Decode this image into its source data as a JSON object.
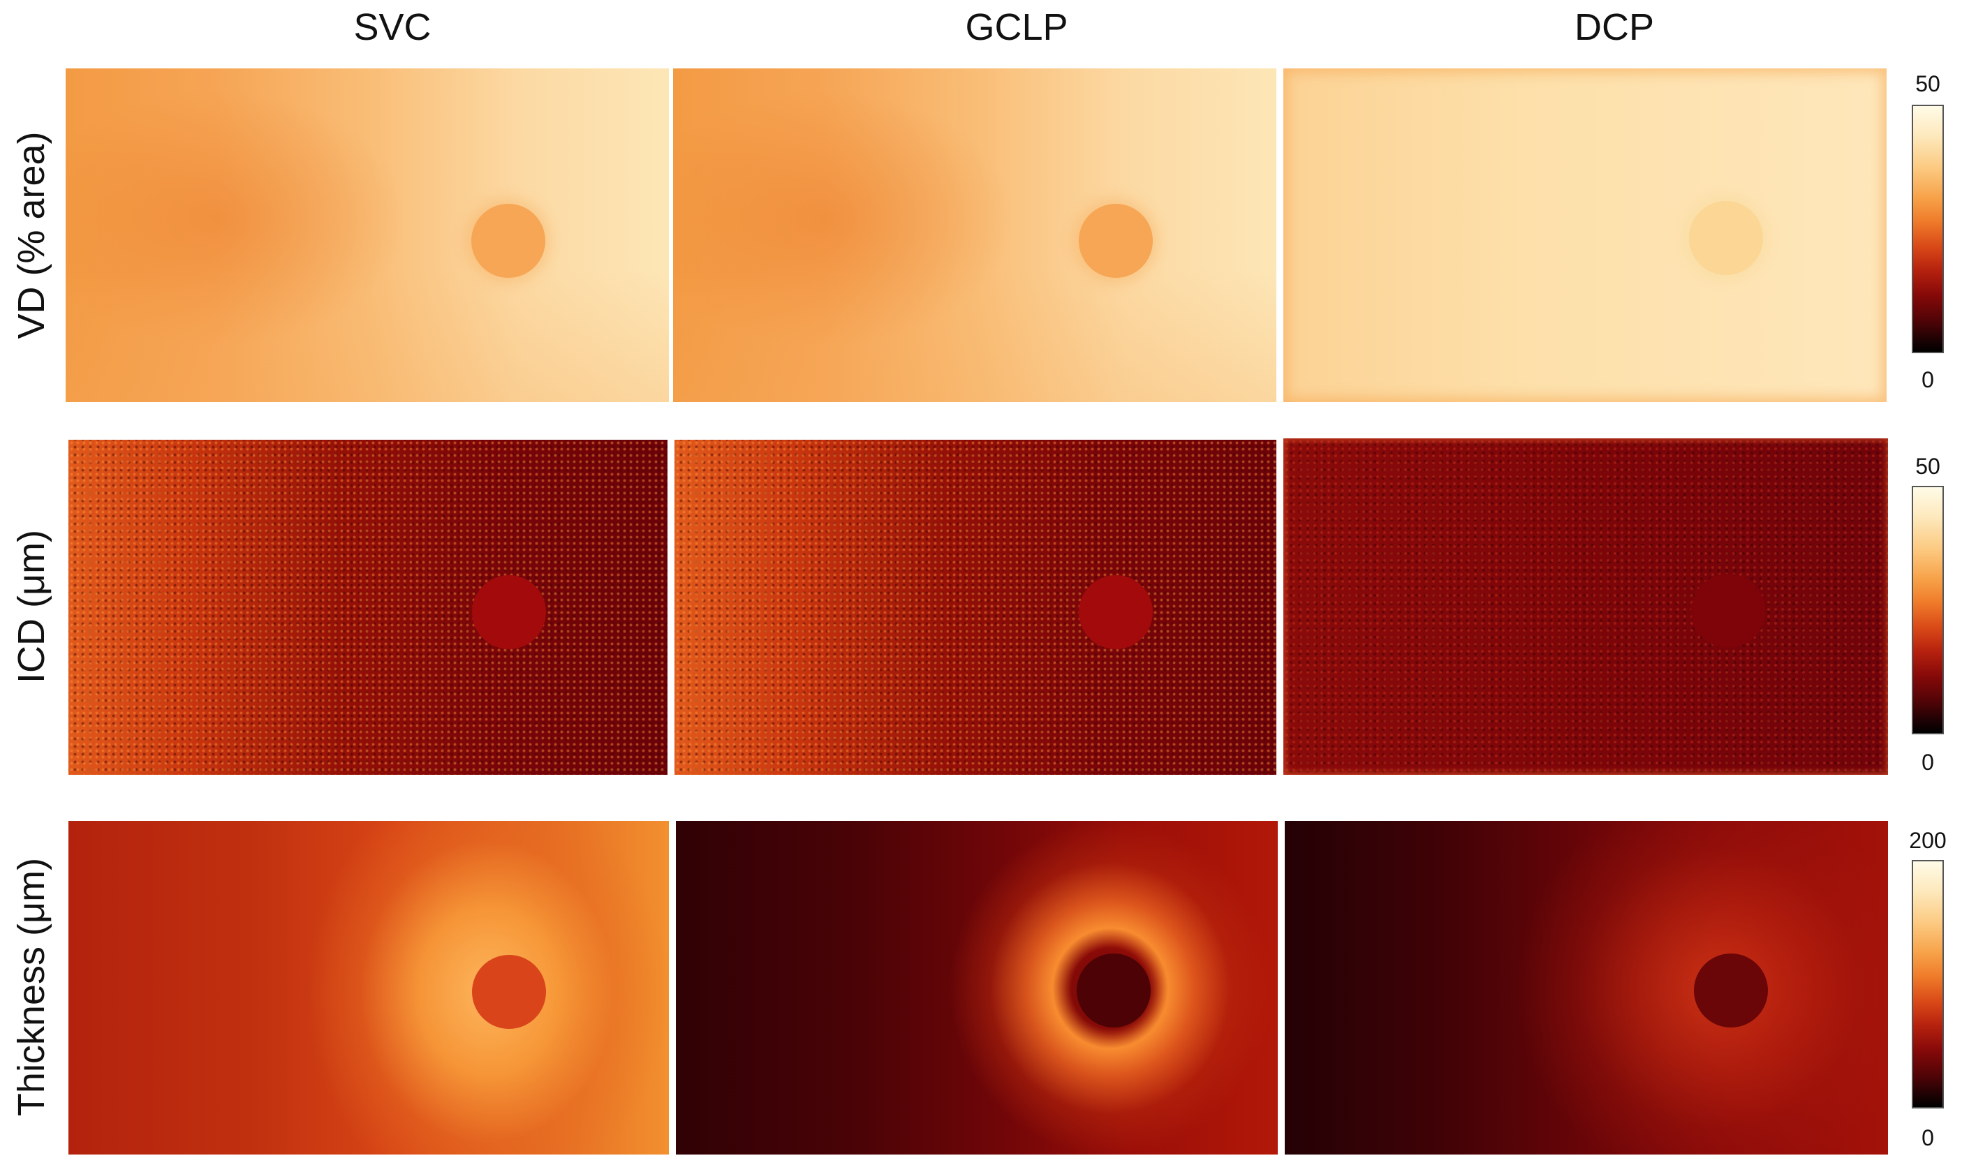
{
  "columns": [
    "SVC",
    "GCLP",
    "DCP"
  ],
  "rows": [
    {
      "label": "VD (% area)",
      "colorbar": {
        "max": "50",
        "min": "0"
      }
    },
    {
      "label": "ICD (μm)",
      "colorbar": {
        "max": "50",
        "min": "0"
      }
    },
    {
      "label": "Thickness (μm)",
      "colorbar": {
        "max": "200",
        "min": "0"
      }
    }
  ],
  "colormap": [
    "#000000",
    "#520407",
    "#b5210e",
    "#ef7b2a",
    "#fcca82",
    "#fffbe8"
  ]
}
